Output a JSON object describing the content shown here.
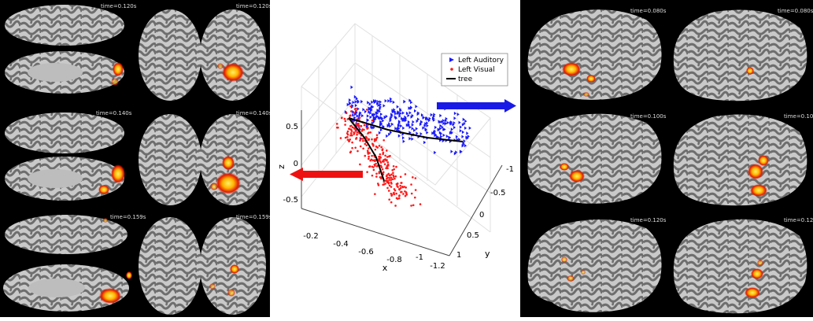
{
  "left_panel": {
    "rows": [
      {
        "time_left": "time=0.120s",
        "time_right": "time=0.120s"
      },
      {
        "time_left": "time=0.140s",
        "time_right": "time=0.140s"
      },
      {
        "time_left": "time=0.159s",
        "time_right": "time=0.159s"
      }
    ]
  },
  "right_panel": {
    "rows": [
      {
        "time_left": "time=0.080s",
        "time_right": "time=0.080s"
      },
      {
        "time_left": "time=0.100s",
        "time_right": "time=0.100s"
      },
      {
        "time_left": "time=0.120s",
        "time_right": "time=0.120s"
      }
    ]
  },
  "plot": {
    "xlabel": "x",
    "ylabel": "y",
    "zlabel": "z",
    "x_ticks": [
      "-0.2",
      "-0.4",
      "-0.6",
      "-0.8",
      "-1",
      "-1.2"
    ],
    "y_ticks": [
      "-1",
      "-0.5",
      "0",
      "0.5",
      "1"
    ],
    "z_ticks": [
      "0.5",
      "0",
      "-0.5"
    ],
    "legend": [
      {
        "label": "Left Auditory",
        "color": "#1a1aff",
        "marker": "triangle"
      },
      {
        "label": "Left Visual",
        "color": "#ff1a1a",
        "marker": "dot"
      },
      {
        "label": "tree",
        "color": "#000000",
        "marker": "line"
      }
    ]
  },
  "colors": {
    "brain_light": "#c9c9c9",
    "brain_dark": "#6e6e6e",
    "activation_hot": "#fff066",
    "activation_mid": "#ff8a00",
    "activation_low": "#e01a00",
    "auditory": "#1a1aff",
    "visual": "#ff1a1a",
    "arrow_blue": "#1a1ae6",
    "arrow_red": "#ee1111"
  }
}
